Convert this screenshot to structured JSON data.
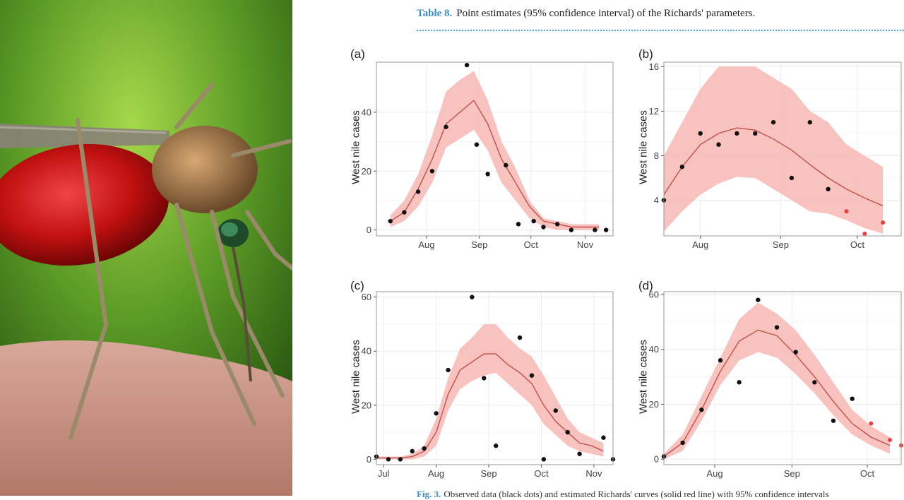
{
  "caption": {
    "label": "Table 8.",
    "text": "Point estimates (95% confidence interval) of the Richards' parameters."
  },
  "photo": {
    "subject": "mosquito-photo"
  },
  "footer": {
    "label": "Fig. 3.",
    "text": "Observed data (black dots) and estimated Richards' curves (solid red line) with 95% confidence intervals"
  },
  "colors": {
    "line": "#c0504d",
    "band": "#f7b8b3",
    "point": "#111111",
    "holdout": "#e8423b",
    "grid": "#ececec",
    "frame": "#999999"
  },
  "chart_data": [
    {
      "label": "(a)",
      "type": "line",
      "ylabel": "West nile cases",
      "xlim": [
        0,
        17
      ],
      "ylim": [
        -2,
        57
      ],
      "xticks": [
        {
          "x": 3.6,
          "label": "Aug"
        },
        {
          "x": 7.4,
          "label": "Sep"
        },
        {
          "x": 11.1,
          "label": "Oct"
        },
        {
          "x": 15,
          "label": "Nov"
        }
      ],
      "yticks": [
        0,
        20,
        40
      ],
      "x": [
        1,
        2,
        3,
        4,
        5,
        6,
        7,
        8,
        9,
        10,
        11,
        12,
        13,
        14,
        15,
        16
      ],
      "fit": [
        3,
        6,
        14,
        24,
        36,
        40,
        44,
        36,
        24,
        16,
        8,
        3,
        2,
        1,
        1,
        1
      ],
      "lower": [
        1,
        3,
        8,
        16,
        28,
        31,
        34,
        27,
        16,
        10,
        4,
        1,
        0,
        0,
        0,
        0
      ],
      "upper": [
        5,
        10,
        19,
        32,
        47,
        51,
        54,
        44,
        30,
        21,
        10,
        4,
        3,
        2,
        2,
        2
      ],
      "observed": [
        {
          "x": 1,
          "y": 3
        },
        {
          "x": 2,
          "y": 6
        },
        {
          "x": 3,
          "y": 13
        },
        {
          "x": 4,
          "y": 20
        },
        {
          "x": 5,
          "y": 35
        },
        {
          "x": 6.5,
          "y": 56
        },
        {
          "x": 7.2,
          "y": 29
        },
        {
          "x": 8,
          "y": 19
        },
        {
          "x": 9.3,
          "y": 22
        },
        {
          "x": 10.2,
          "y": 2
        },
        {
          "x": 11.3,
          "y": 3
        },
        {
          "x": 12,
          "y": 1
        },
        {
          "x": 13,
          "y": 2
        },
        {
          "x": 14,
          "y": 0
        },
        {
          "x": 15.7,
          "y": 0
        },
        {
          "x": 16.5,
          "y": 0
        }
      ],
      "holdout": []
    },
    {
      "label": "(b)",
      "type": "line",
      "ylabel": "West nile cases",
      "xlim": [
        0,
        13
      ],
      "ylim": [
        0.8,
        16.4
      ],
      "xticks": [
        {
          "x": 2,
          "label": "Aug"
        },
        {
          "x": 6.4,
          "label": "Sep"
        },
        {
          "x": 10.6,
          "label": "Oct"
        }
      ],
      "yticks": [
        4,
        8,
        12,
        16
      ],
      "x": [
        0,
        1,
        2,
        3,
        4,
        5,
        6,
        7,
        8,
        9,
        10,
        11,
        12
      ],
      "fit": [
        4.5,
        7.0,
        9.0,
        10.0,
        10.5,
        10.3,
        9.5,
        8.5,
        7.2,
        6.0,
        5.0,
        4.2,
        3.5
      ],
      "lower": [
        1.2,
        3.0,
        4.5,
        5.5,
        6.1,
        6.0,
        5.0,
        4.0,
        3.0,
        2.8,
        2.2,
        1.5,
        1.0
      ],
      "upper": [
        8.0,
        11.0,
        14.0,
        16.0,
        16.0,
        16.0,
        15.0,
        14.0,
        12.0,
        11.0,
        9.0,
        8.0,
        7.0
      ],
      "observed": [
        {
          "x": 0,
          "y": 4
        },
        {
          "x": 1,
          "y": 7
        },
        {
          "x": 2,
          "y": 10
        },
        {
          "x": 3,
          "y": 9
        },
        {
          "x": 4,
          "y": 10
        },
        {
          "x": 5,
          "y": 10
        },
        {
          "x": 6,
          "y": 11
        },
        {
          "x": 7,
          "y": 6
        },
        {
          "x": 8,
          "y": 11
        },
        {
          "x": 9,
          "y": 5
        }
      ],
      "holdout": [
        {
          "x": 10,
          "y": 3
        },
        {
          "x": 11,
          "y": 1
        },
        {
          "x": 12,
          "y": 2
        }
      ]
    },
    {
      "label": "(c)",
      "type": "line",
      "ylabel": "West nile cases",
      "xlim": [
        0,
        19.8
      ],
      "ylim": [
        -2,
        62
      ],
      "xticks": [
        {
          "x": 0.6,
          "label": "Jul"
        },
        {
          "x": 5,
          "label": "Aug"
        },
        {
          "x": 9.4,
          "label": "Sep"
        },
        {
          "x": 13.8,
          "label": "Oct"
        },
        {
          "x": 18.2,
          "label": "Nov"
        }
      ],
      "yticks": [
        0,
        20,
        40,
        60
      ],
      "x": [
        0,
        1,
        2,
        3,
        4,
        5,
        6,
        7,
        8,
        9,
        10,
        11,
        12,
        13,
        14,
        15,
        16,
        17,
        18,
        19
      ],
      "fit": [
        0.5,
        0.5,
        0.5,
        1,
        3,
        10,
        24,
        33,
        36,
        39,
        39,
        35,
        32,
        28,
        20,
        14,
        10,
        6,
        5,
        3
      ],
      "lower": [
        0,
        0,
        0,
        0,
        1,
        5,
        18,
        26,
        29,
        31,
        32,
        28,
        24,
        20,
        13,
        9,
        5,
        3,
        2,
        1
      ],
      "upper": [
        1,
        1,
        1,
        2,
        5,
        15,
        30,
        41,
        45,
        50,
        50,
        45,
        41,
        38,
        31,
        23,
        15,
        10,
        8,
        6
      ],
      "observed": [
        {
          "x": 0,
          "y": 1
        },
        {
          "x": 1,
          "y": 0
        },
        {
          "x": 2,
          "y": 0
        },
        {
          "x": 3,
          "y": 3
        },
        {
          "x": 4,
          "y": 4
        },
        {
          "x": 5,
          "y": 17
        },
        {
          "x": 6,
          "y": 33
        },
        {
          "x": 8,
          "y": 60
        },
        {
          "x": 9,
          "y": 30
        },
        {
          "x": 10,
          "y": 5
        },
        {
          "x": 12,
          "y": 45
        },
        {
          "x": 13,
          "y": 31
        },
        {
          "x": 14,
          "y": 0
        },
        {
          "x": 15,
          "y": 18
        },
        {
          "x": 16,
          "y": 10
        },
        {
          "x": 17,
          "y": 2
        },
        {
          "x": 19,
          "y": 8
        },
        {
          "x": 19.8,
          "y": 0
        }
      ],
      "holdout": []
    },
    {
      "label": "(d)",
      "type": "line",
      "ylabel": "West nile cases",
      "xlim": [
        0,
        12.6
      ],
      "ylim": [
        -2,
        61
      ],
      "xticks": [
        {
          "x": 2.7,
          "label": "Aug"
        },
        {
          "x": 6.8,
          "label": "Sep"
        },
        {
          "x": 10.8,
          "label": "Oct"
        }
      ],
      "yticks": [
        0,
        20,
        40,
        60
      ],
      "x": [
        0,
        1,
        2,
        3,
        4,
        5,
        6,
        7,
        8,
        9,
        10,
        11,
        12
      ],
      "fit": [
        1,
        6,
        18,
        32,
        43,
        47,
        45,
        38,
        30,
        21,
        13,
        8,
        5
      ],
      "lower": [
        0,
        3,
        14,
        27,
        36,
        39,
        37,
        31,
        24,
        16,
        9,
        5,
        2
      ],
      "upper": [
        2,
        9,
        23,
        37,
        51,
        57,
        53,
        47,
        38,
        28,
        18,
        12,
        8
      ],
      "observed": [
        {
          "x": 0,
          "y": 1
        },
        {
          "x": 1,
          "y": 6
        },
        {
          "x": 2,
          "y": 18
        },
        {
          "x": 3,
          "y": 36
        },
        {
          "x": 4,
          "y": 28
        },
        {
          "x": 5,
          "y": 58
        },
        {
          "x": 6,
          "y": 48
        },
        {
          "x": 7,
          "y": 39
        },
        {
          "x": 8,
          "y": 28
        },
        {
          "x": 9,
          "y": 14
        },
        {
          "x": 10,
          "y": 22
        }
      ],
      "holdout": [
        {
          "x": 11,
          "y": 13
        },
        {
          "x": 12,
          "y": 7
        },
        {
          "x": 12.6,
          "y": 5
        }
      ]
    }
  ]
}
